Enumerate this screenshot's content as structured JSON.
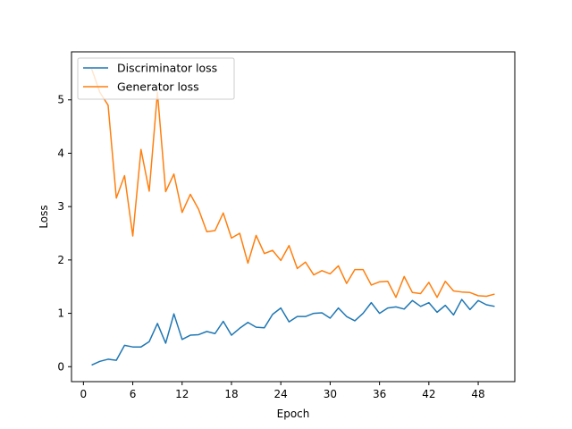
{
  "chart_data": {
    "type": "line",
    "title": "",
    "xlabel": "Epoch",
    "ylabel": "Loss",
    "xlim": [
      -1.45,
      52.45
    ],
    "ylim": [
      -0.28,
      5.9
    ],
    "xticks": [
      0,
      6,
      12,
      18,
      24,
      30,
      36,
      42,
      48
    ],
    "yticks": [
      0,
      1,
      2,
      3,
      4,
      5
    ],
    "grid": false,
    "legend": "top-left",
    "x": [
      1,
      2,
      3,
      4,
      5,
      6,
      7,
      8,
      9,
      10,
      11,
      12,
      13,
      14,
      15,
      16,
      17,
      18,
      19,
      20,
      21,
      22,
      23,
      24,
      25,
      26,
      27,
      28,
      29,
      30,
      31,
      32,
      33,
      34,
      35,
      36,
      37,
      38,
      39,
      40,
      41,
      42,
      43,
      44,
      45,
      46,
      47,
      48,
      49,
      50
    ],
    "series": [
      {
        "name": "Discriminator loss",
        "color": "#1f77b4",
        "values": [
          0.03,
          0.1,
          0.14,
          0.12,
          0.4,
          0.37,
          0.37,
          0.47,
          0.81,
          0.44,
          0.99,
          0.51,
          0.59,
          0.6,
          0.66,
          0.62,
          0.85,
          0.59,
          0.72,
          0.83,
          0.74,
          0.73,
          0.98,
          1.1,
          0.84,
          0.94,
          0.94,
          1.0,
          1.01,
          0.91,
          1.1,
          0.94,
          0.86,
          1.0,
          1.2,
          1.0,
          1.1,
          1.12,
          1.08,
          1.24,
          1.13,
          1.2,
          1.02,
          1.15,
          0.97,
          1.26,
          1.07,
          1.24,
          1.16,
          1.13
        ]
      },
      {
        "name": "Generator loss",
        "color": "#ff7f0e",
        "values": [
          5.58,
          5.14,
          4.9,
          3.16,
          3.58,
          2.45,
          4.07,
          3.29,
          5.14,
          3.28,
          3.61,
          2.89,
          3.23,
          2.95,
          2.53,
          2.55,
          2.88,
          2.41,
          2.5,
          1.94,
          2.46,
          2.12,
          2.18,
          1.99,
          2.27,
          1.84,
          1.96,
          1.72,
          1.8,
          1.74,
          1.89,
          1.56,
          1.82,
          1.82,
          1.53,
          1.59,
          1.6,
          1.3,
          1.69,
          1.39,
          1.37,
          1.58,
          1.3,
          1.6,
          1.42,
          1.4,
          1.39,
          1.33,
          1.32,
          1.36
        ]
      }
    ]
  }
}
